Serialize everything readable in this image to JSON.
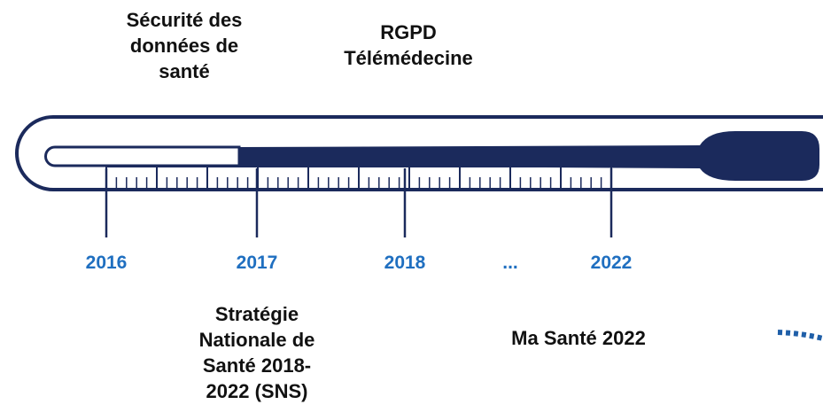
{
  "top_labels": [
    {
      "lines": [
        "Sécurité des",
        "données de",
        "santé"
      ]
    },
    {
      "lines": [
        "RGPD",
        "Télémédecine"
      ]
    }
  ],
  "years": [
    "2016",
    "2017",
    "2018",
    "...",
    "2022"
  ],
  "bottom_labels": [
    {
      "lines": [
        "Stratégie",
        "Nationale de",
        "Santé 2018-",
        "2022 (SNS)"
      ]
    },
    {
      "lines": [
        "Ma Santé 2022"
      ]
    }
  ]
}
